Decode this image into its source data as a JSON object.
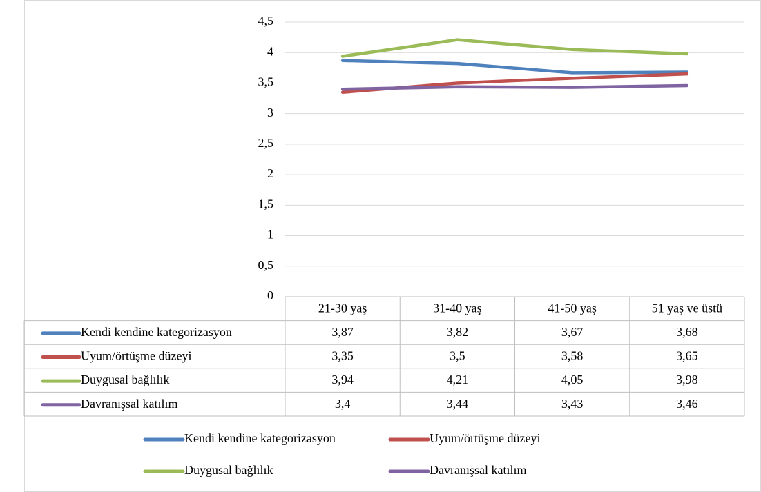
{
  "chart_data": {
    "type": "line",
    "categories": [
      "21-30 yaş",
      "31-40 yaş",
      "41-50 yaş",
      "51 yaş ve üstü"
    ],
    "series": [
      {
        "name": "Kendi kendine kategorizasyon",
        "color": "#4f81bd",
        "values": [
          3.87,
          3.82,
          3.67,
          3.68
        ],
        "value_labels": [
          "3,87",
          "3,82",
          "3,67",
          "3,68"
        ]
      },
      {
        "name": "Uyum/örtüşme düzeyi",
        "color": "#c0504d",
        "values": [
          3.35,
          3.5,
          3.58,
          3.65
        ],
        "value_labels": [
          "3,35",
          "3,5",
          "3,58",
          "3,65"
        ]
      },
      {
        "name": "Duygusal bağlılık",
        "color": "#9bbb59",
        "values": [
          3.94,
          4.21,
          4.05,
          3.98
        ],
        "value_labels": [
          "3,94",
          "4,21",
          "4,05",
          "3,98"
        ]
      },
      {
        "name": "Davranışsal katılım",
        "color": "#8064a2",
        "values": [
          3.4,
          3.44,
          3.43,
          3.46
        ],
        "value_labels": [
          "3,4",
          "3,44",
          "3,43",
          "3,46"
        ]
      }
    ],
    "ylim": [
      0,
      4.5
    ],
    "yticks": [
      0,
      {
        "value": 0.5,
        "label": "0,5"
      },
      1,
      {
        "value": 1.5,
        "label": "1,5"
      },
      2,
      {
        "value": 2.5,
        "label": "2,5"
      },
      3,
      {
        "value": 3.5,
        "label": "3,5"
      },
      4,
      {
        "value": 4.5,
        "label": "4,5"
      }
    ],
    "grid": true,
    "legend": "bottom"
  }
}
